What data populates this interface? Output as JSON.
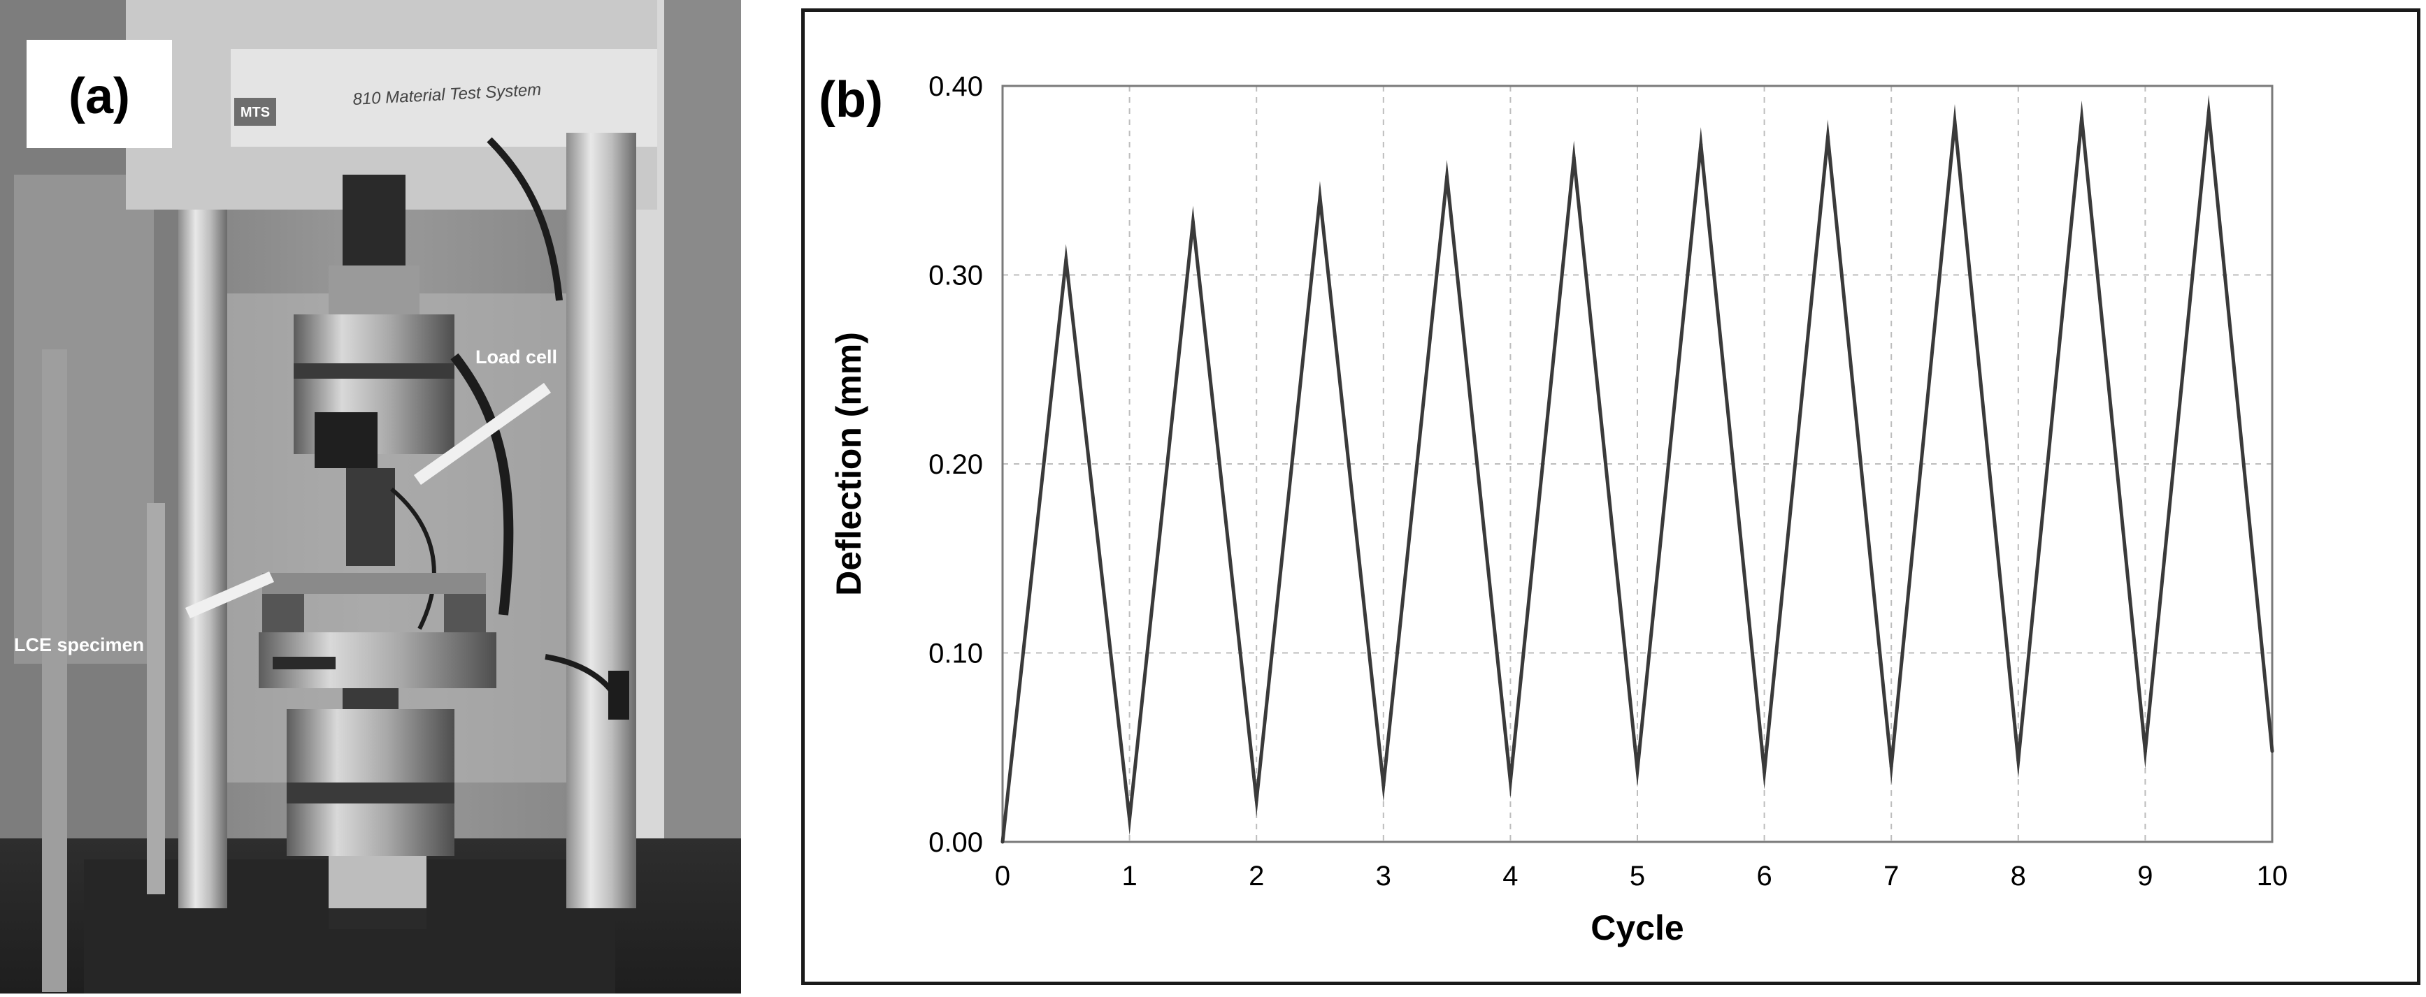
{
  "panel_a": {
    "label": "(a)",
    "machine_brand": "MTS",
    "machine_name": "810 Material Test System",
    "annotations": [
      "Load cell",
      "LCE specimen"
    ]
  },
  "panel_b": {
    "label": "(b)"
  },
  "chart_data": {
    "type": "line",
    "title": "",
    "xlabel": "Cycle",
    "ylabel": "Deflection (mm)",
    "xlim": [
      0,
      10
    ],
    "ylim": [
      0,
      0.4
    ],
    "xticks": [
      "0",
      "1",
      "2",
      "3",
      "4",
      "5",
      "6",
      "7",
      "8",
      "9",
      "10"
    ],
    "yticks": [
      "0.00",
      "0.10",
      "0.20",
      "0.30",
      "0.40"
    ],
    "grid": true,
    "legend": "none",
    "series": [
      {
        "name": "Deflection",
        "color": "#3a3a3a",
        "x": [
          0,
          0.5,
          1,
          1.5,
          2,
          2.5,
          3,
          3.5,
          4,
          4.5,
          5,
          5.5,
          6,
          6.5,
          7,
          7.5,
          8,
          8.5,
          9,
          9.5,
          10
        ],
        "y": [
          0.0,
          0.308,
          0.012,
          0.328,
          0.022,
          0.341,
          0.03,
          0.352,
          0.032,
          0.362,
          0.038,
          0.369,
          0.037,
          0.373,
          0.04,
          0.381,
          0.043,
          0.383,
          0.048,
          0.386,
          0.048
        ]
      }
    ]
  }
}
